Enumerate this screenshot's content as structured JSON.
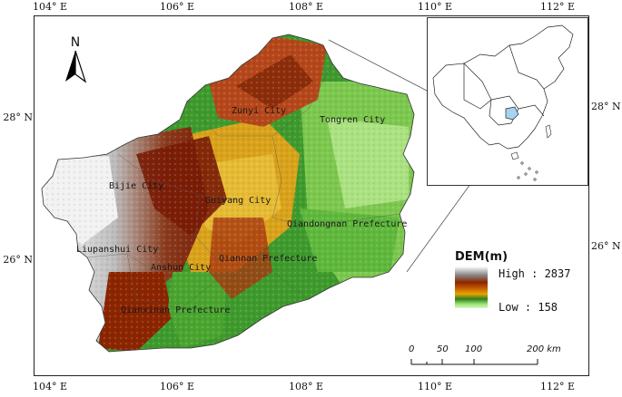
{
  "axes": {
    "top_ticks": [
      "104° E",
      "106° E",
      "108° E",
      "110° E",
      "112° E"
    ],
    "bottom_ticks": [
      "104° E",
      "106° E",
      "108° E",
      "110° E",
      "112° E"
    ],
    "left_ticks": [
      "28° N",
      "26° N"
    ],
    "right_ticks": [
      "28° N",
      "26° N"
    ]
  },
  "north_arrow": {
    "label": "N"
  },
  "cities": [
    {
      "name": "Zunyi City"
    },
    {
      "name": "Tongren City"
    },
    {
      "name": "Bijie City"
    },
    {
      "name": "Guiyang City"
    },
    {
      "name": "Qiandongnan Prefecture"
    },
    {
      "name": "Liupanshui City"
    },
    {
      "name": "Anshun City"
    },
    {
      "name": "Qiannan Prefecture"
    },
    {
      "name": "Qianxinan Prefecture"
    }
  ],
  "legend": {
    "title": "DEM(m)",
    "high_label": "High : 2837",
    "low_label": "Low : 158",
    "ramp_colors": [
      "#ffffff",
      "#8a8a8a",
      "#8b2500",
      "#c25a00",
      "#e6a400",
      "#2f7d1f",
      "#9be36f",
      "#d8f7c9"
    ]
  },
  "scale_bar": {
    "labels": [
      "0",
      "50",
      "100",
      "200 km"
    ]
  },
  "inset": {
    "highlight_color": "#a6d4f0"
  }
}
